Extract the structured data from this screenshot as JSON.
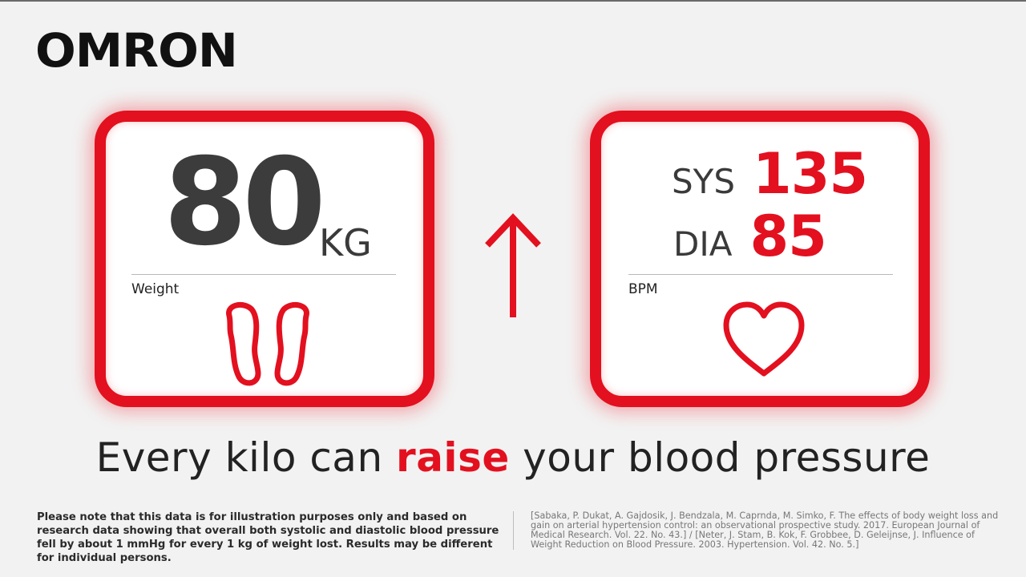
{
  "brand": {
    "logo_text": "OMRON"
  },
  "weight_card": {
    "value": "80",
    "unit": "KG",
    "label": "Weight",
    "icon": "feet-icon"
  },
  "bp_card": {
    "sys_label": "SYS",
    "sys_value": "135",
    "dia_label": "DIA",
    "dia_value": "85",
    "label": "BPM",
    "icon": "heart-icon"
  },
  "arrow": {
    "icon": "arrow-up-icon",
    "color": "#e3101f"
  },
  "tagline": {
    "before": "Every kilo can ",
    "emphasis": "raise",
    "after": " your blood pressure"
  },
  "disclaimer": "Please note that this data is for illustration purposes only and based on research data showing that overall both systolic and diastolic blood pressure fell by about 1 mmHg for every 1 kg of weight lost. Results may be different for individual persons.",
  "references": "[Sabaka, P. Dukat, A. Gajdosik, J. Bendzala, M. Caprnda, M. Simko, F. The effects of body weight loss and gain on arterial hypertension control: an observational prospective study. 2017. European Journal of Medical Research. Vol. 22. No. 43.] / [Neter, J. Stam, B. Kok, F. Grobbee, D. Geleijnse, J. Influence of Weight Reduction on Blood Pressure. 2003. Hypertension. Vol. 42. No. 5.]",
  "colors": {
    "accent": "#e3101f",
    "background": "#f2f2f2",
    "text": "#2b2b2b"
  }
}
